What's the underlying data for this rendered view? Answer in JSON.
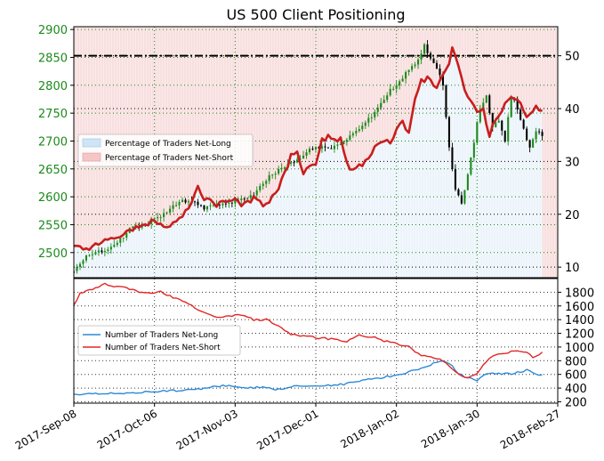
{
  "chart_data": [
    {
      "type": "candlestick-line",
      "title": "US 500 Client Positioning",
      "y_left_ticks": [
        2500,
        2550,
        2600,
        2650,
        2700,
        2750,
        2800,
        2850,
        2900
      ],
      "y_left_range": [
        2455,
        2905
      ],
      "y_right_ticks": [
        10,
        20,
        30,
        40,
        50
      ],
      "y_right_range": [
        8,
        55.5
      ],
      "x_ticks": [
        "2017-Sep-08",
        "2017-Oct-06",
        "2017-Nov-03",
        "2017-Dec-01",
        "2018-Jan-02",
        "2018-Jan-30",
        "2018-Feb-27"
      ],
      "reference_level": 50,
      "legend": {
        "position": "upper-left",
        "entries": [
          "Percentage of Traders Net-Long",
          "Percentage of Traders Net-Short"
        ]
      },
      "colors": {
        "net_long_fill": "#cfe5f7",
        "net_short_fill": "#f5c6c6",
        "net_short_line": "#c81e1e",
        "candle_up": "#1b8a1b",
        "candle_down": "#000000"
      },
      "price_close_anchors": [
        [
          0,
          2465
        ],
        [
          2,
          2482
        ],
        [
          4,
          2495
        ],
        [
          7,
          2500
        ],
        [
          10,
          2505
        ],
        [
          14,
          2515
        ],
        [
          18,
          2545
        ],
        [
          22,
          2550
        ],
        [
          26,
          2560
        ],
        [
          30,
          2575
        ],
        [
          34,
          2590
        ],
        [
          38,
          2595
        ],
        [
          42,
          2580
        ],
        [
          46,
          2585
        ],
        [
          50,
          2590
        ],
        [
          54,
          2595
        ],
        [
          58,
          2605
        ],
        [
          62,
          2630
        ],
        [
          66,
          2650
        ],
        [
          70,
          2660
        ],
        [
          74,
          2675
        ],
        [
          78,
          2690
        ],
        [
          82,
          2685
        ],
        [
          86,
          2695
        ],
        [
          90,
          2715
        ],
        [
          94,
          2730
        ],
        [
          98,
          2760
        ],
        [
          102,
          2790
        ],
        [
          106,
          2815
        ],
        [
          110,
          2840
        ],
        [
          113,
          2870
        ],
        [
          115,
          2850
        ],
        [
          117,
          2830
        ],
        [
          119,
          2800
        ],
        [
          121,
          2690
        ],
        [
          123,
          2610
        ],
        [
          125,
          2590
        ],
        [
          127,
          2640
        ],
        [
          129,
          2700
        ],
        [
          131,
          2760
        ],
        [
          133,
          2780
        ],
        [
          135,
          2725
        ],
        [
          137,
          2740
        ],
        [
          139,
          2700
        ],
        [
          141,
          2780
        ],
        [
          143,
          2760
        ],
        [
          145,
          2720
        ],
        [
          147,
          2690
        ],
        [
          149,
          2720
        ],
        [
          151,
          2710
        ]
      ],
      "net_short_pct_anchors": [
        [
          0,
          14
        ],
        [
          3,
          13
        ],
        [
          6,
          14
        ],
        [
          10,
          15
        ],
        [
          14,
          15.5
        ],
        [
          18,
          17
        ],
        [
          22,
          18
        ],
        [
          26,
          18.5
        ],
        [
          30,
          18
        ],
        [
          34,
          19
        ],
        [
          38,
          22
        ],
        [
          40,
          25
        ],
        [
          42,
          23
        ],
        [
          46,
          22
        ],
        [
          50,
          23
        ],
        [
          54,
          22
        ],
        [
          58,
          23
        ],
        [
          62,
          21.5
        ],
        [
          66,
          25
        ],
        [
          68,
          28
        ],
        [
          70,
          31
        ],
        [
          72,
          32
        ],
        [
          74,
          28
        ],
        [
          78,
          30
        ],
        [
          80,
          34
        ],
        [
          82,
          34.5
        ],
        [
          86,
          34
        ],
        [
          89,
          28
        ],
        [
          92,
          29
        ],
        [
          95,
          31
        ],
        [
          98,
          33
        ],
        [
          102,
          34
        ],
        [
          104,
          36
        ],
        [
          106,
          38
        ],
        [
          108,
          35
        ],
        [
          110,
          42
        ],
        [
          112,
          45
        ],
        [
          114,
          46
        ],
        [
          116,
          44
        ],
        [
          118,
          45
        ],
        [
          120,
          47
        ],
        [
          122,
          51
        ],
        [
          124,
          48
        ],
        [
          126,
          43
        ],
        [
          128,
          41
        ],
        [
          130,
          39
        ],
        [
          132,
          40
        ],
        [
          134,
          35
        ],
        [
          136,
          38
        ],
        [
          138,
          40
        ],
        [
          140,
          42
        ],
        [
          142,
          42
        ],
        [
          144,
          41
        ],
        [
          146,
          39
        ],
        [
          148,
          40
        ],
        [
          150,
          40
        ]
      ],
      "n_points": 152
    },
    {
      "type": "line",
      "y_ticks": [
        200,
        400,
        600,
        800,
        1000,
        1200,
        1400,
        1600,
        1800
      ],
      "y_range": [
        180,
        2000
      ],
      "legend": {
        "position": "center-left",
        "entries": [
          "Number of Traders Net-Long",
          "Number of Traders Net-Short"
        ]
      },
      "colors": {
        "net_long": "#2b8ad8",
        "net_short": "#e32626"
      },
      "series": [
        {
          "name": "Number of Traders Net-Long",
          "anchors": [
            [
              0,
              300
            ],
            [
              10,
              320
            ],
            [
              20,
              330
            ],
            [
              30,
              360
            ],
            [
              40,
              380
            ],
            [
              46,
              430
            ],
            [
              50,
              440
            ],
            [
              56,
              400
            ],
            [
              60,
              410
            ],
            [
              66,
              380
            ],
            [
              72,
              430
            ],
            [
              78,
              440
            ],
            [
              86,
              450
            ],
            [
              92,
              500
            ],
            [
              100,
              560
            ],
            [
              106,
              600
            ],
            [
              110,
              660
            ],
            [
              114,
              720
            ],
            [
              118,
              800
            ],
            [
              121,
              760
            ],
            [
              124,
              620
            ],
            [
              127,
              540
            ],
            [
              130,
              520
            ],
            [
              134,
              620
            ],
            [
              138,
              600
            ],
            [
              142,
              620
            ],
            [
              146,
              660
            ],
            [
              150,
              600
            ]
          ]
        },
        {
          "name": "Number of Traders Net-Short",
          "anchors": [
            [
              0,
              1600
            ],
            [
              2,
              1780
            ],
            [
              6,
              1850
            ],
            [
              10,
              1920
            ],
            [
              14,
              1880
            ],
            [
              18,
              1850
            ],
            [
              22,
              1800
            ],
            [
              26,
              1780
            ],
            [
              28,
              1820
            ],
            [
              30,
              1760
            ],
            [
              34,
              1700
            ],
            [
              38,
              1600
            ],
            [
              42,
              1500
            ],
            [
              46,
              1440
            ],
            [
              50,
              1460
            ],
            [
              54,
              1470
            ],
            [
              58,
              1400
            ],
            [
              62,
              1400
            ],
            [
              66,
              1300
            ],
            [
              70,
              1180
            ],
            [
              74,
              1160
            ],
            [
              78,
              1140
            ],
            [
              84,
              1110
            ],
            [
              88,
              1080
            ],
            [
              92,
              1180
            ],
            [
              96,
              1150
            ],
            [
              100,
              1090
            ],
            [
              104,
              1050
            ],
            [
              108,
              1000
            ],
            [
              112,
              880
            ],
            [
              116,
              850
            ],
            [
              118,
              820
            ],
            [
              120,
              780
            ],
            [
              124,
              600
            ],
            [
              127,
              540
            ],
            [
              130,
              620
            ],
            [
              134,
              850
            ],
            [
              138,
              900
            ],
            [
              142,
              940
            ],
            [
              146,
              920
            ],
            [
              148,
              850
            ],
            [
              150,
              880
            ],
            [
              151,
              940
            ]
          ]
        }
      ]
    }
  ],
  "x_tick_positions_idx": [
    0,
    26,
    52,
    78,
    104,
    130,
    156
  ]
}
